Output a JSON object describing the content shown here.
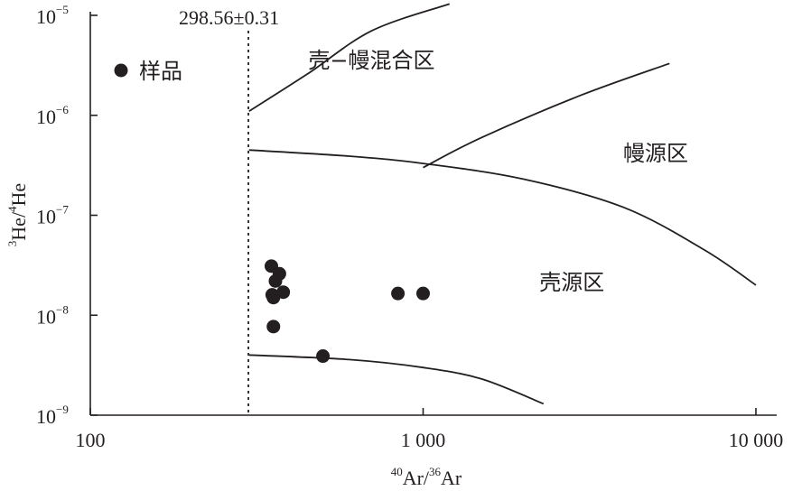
{
  "chart_data": {
    "type": "scatter",
    "title": "",
    "xlabel": {
      "sup1": "40",
      "base1": "Ar/",
      "sup2": "36",
      "base2": "Ar"
    },
    "ylabel": {
      "sup1": "3",
      "base1": "He/",
      "sup2": "4",
      "base2": "He"
    },
    "x_scale": "log",
    "y_scale": "log",
    "xlim": [
      100,
      10000
    ],
    "ylim": [
      1e-09,
      1e-05
    ],
    "grid": false,
    "x_ticks": [
      {
        "value": 100,
        "label": "100"
      },
      {
        "value": 1000,
        "label": "1 000"
      },
      {
        "value": 10000,
        "label": "10 000"
      }
    ],
    "y_ticks": [
      {
        "value": 1e-05,
        "base": "10",
        "exp": "−5"
      },
      {
        "value": 1e-06,
        "base": "10",
        "exp": "−6"
      },
      {
        "value": 1e-07,
        "base": "10",
        "exp": "−7"
      },
      {
        "value": 1e-08,
        "base": "10",
        "exp": "−8"
      },
      {
        "value": 1e-09,
        "base": "10",
        "exp": "−9"
      }
    ],
    "legend": {
      "label": "样品",
      "position": "top-left"
    },
    "atmosphere_line": {
      "x": 298.56,
      "label": "298.56±0.31"
    },
    "region_labels": [
      {
        "text": "壳−幔混合区",
        "x": 700,
        "y": 3e-06
      },
      {
        "text": "幔源区",
        "x": 5000,
        "y": 3.5e-07
      },
      {
        "text": "壳源区",
        "x": 2800,
        "y": 1.8e-08
      }
    ],
    "boundaries": [
      {
        "name": "boundary-upper",
        "points": [
          [
            300,
            1.1e-06
          ],
          [
            450,
            2.6e-06
          ],
          [
            700,
            7e-06
          ],
          [
            1200,
            1.3e-05
          ]
        ]
      },
      {
        "name": "boundary-middle",
        "points": [
          [
            300,
            4.5e-07
          ],
          [
            600,
            3.9e-07
          ],
          [
            1000,
            3.3e-07
          ],
          [
            2000,
            2.3e-07
          ],
          [
            4000,
            1.2e-07
          ],
          [
            7000,
            4.5e-08
          ],
          [
            10000,
            2e-08
          ]
        ]
      },
      {
        "name": "boundary-diagonal",
        "points": [
          [
            1000,
            3e-07
          ],
          [
            1500,
            6e-07
          ],
          [
            3000,
            1.6e-06
          ],
          [
            5500,
            3.3e-06
          ]
        ]
      },
      {
        "name": "boundary-lower",
        "points": [
          [
            300,
            4e-09
          ],
          [
            600,
            3.6e-09
          ],
          [
            1000,
            3e-09
          ],
          [
            1500,
            2.3e-09
          ],
          [
            2300,
            1.3e-09
          ]
        ]
      }
    ],
    "series": [
      {
        "points": [
          {
            "x": 350,
            "y": 3.1e-08
          },
          {
            "x": 370,
            "y": 2.6e-08
          },
          {
            "x": 360,
            "y": 2.2e-08
          },
          {
            "x": 380,
            "y": 1.7e-08
          },
          {
            "x": 352,
            "y": 1.6e-08
          },
          {
            "x": 355,
            "y": 1.5e-08
          },
          {
            "x": 355,
            "y": 7.7e-09
          },
          {
            "x": 500,
            "y": 3.9e-09
          },
          {
            "x": 840,
            "y": 1.65e-08
          },
          {
            "x": 1000,
            "y": 1.65e-08
          }
        ]
      }
    ]
  }
}
